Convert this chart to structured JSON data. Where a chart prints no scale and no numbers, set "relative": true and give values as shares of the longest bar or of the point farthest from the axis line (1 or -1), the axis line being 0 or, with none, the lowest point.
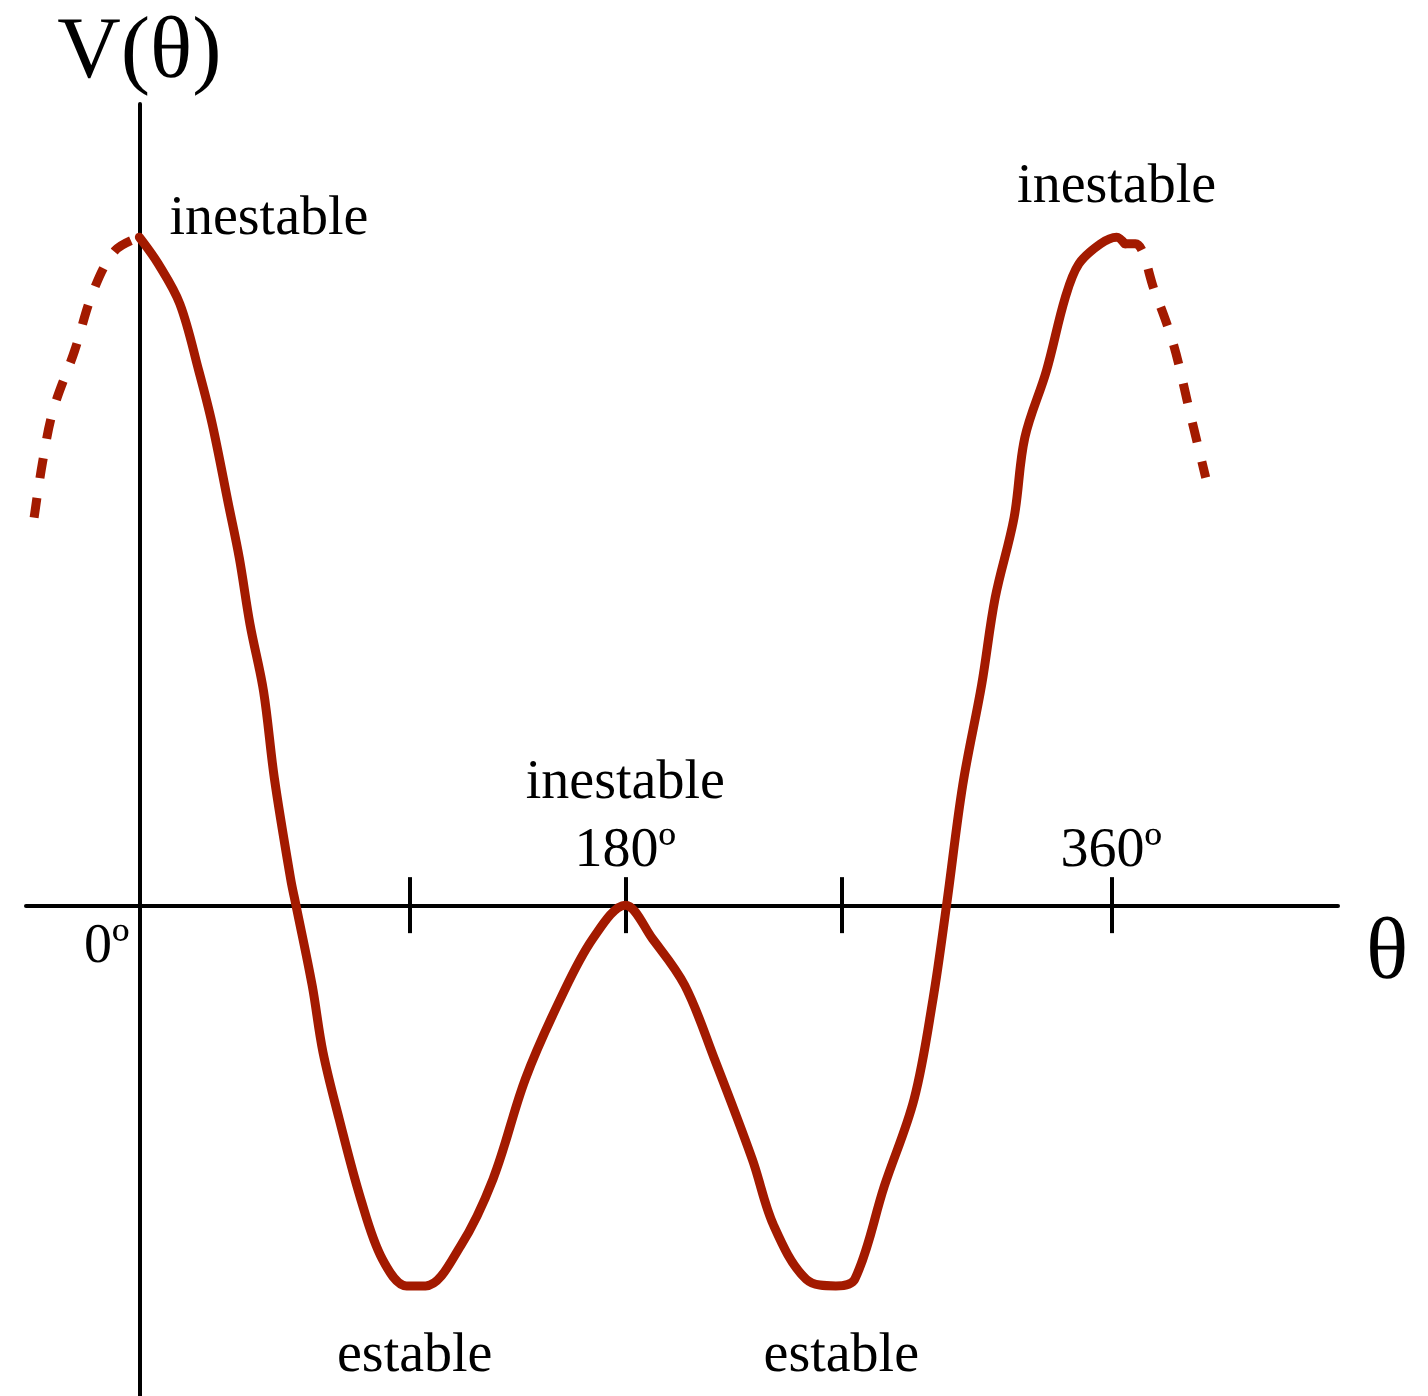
{
  "chart_data": {
    "type": "line",
    "xlabel": "θ",
    "ylabel": "V(θ)",
    "relative": true,
    "tick_labels": "x",
    "marker": "none",
    "xlim": [
      -42,
      444
    ],
    "xticks": [
      {
        "value": 100,
        "label": null
      },
      {
        "value": 180,
        "label": "180º"
      },
      {
        "value": 260,
        "label": null
      },
      {
        "value": 360,
        "label": "360º"
      }
    ],
    "series": [
      {
        "color": "#a31a00",
        "line_style": "solid",
        "x": [
          0,
          7,
          15,
          22,
          27,
          33,
          37,
          41,
          46,
          50,
          56,
          58,
          64,
          68,
          74,
          82,
          90,
          99,
          106,
          119,
          131,
          143,
          156,
          168,
          180,
          190,
          202,
          213,
          227,
          235,
          247,
          258,
          265,
          276,
          287,
          294,
          299,
          305,
          312,
          317,
          324,
          328,
          336,
          343,
          348,
          356,
          362,
          365
        ],
        "values": [
          1.0,
          0.96,
          0.9,
          0.8,
          0.72,
          0.6,
          0.52,
          0.42,
          0.32,
          0.19,
          0.04,
          0,
          -0.12,
          -0.22,
          -0.32,
          -0.44,
          -0.53,
          -0.57,
          -0.57,
          -0.51,
          -0.41,
          -0.26,
          -0.14,
          -0.05,
          0,
          -0.05,
          -0.12,
          -0.23,
          -0.38,
          -0.48,
          -0.56,
          -0.57,
          -0.56,
          -0.42,
          -0.29,
          -0.14,
          0,
          0.18,
          0.33,
          0.46,
          0.58,
          0.7,
          0.8,
          0.91,
          0.96,
          0.99,
          1.0,
          0.99
        ]
      },
      {
        "color": "#a31a00",
        "line_style": "dashed",
        "x": [
          -39,
          -36,
          -32,
          -24,
          -17,
          -9,
          0
        ],
        "values": [
          0.58,
          0.66,
          0.74,
          0.83,
          0.92,
          0.98,
          1.0
        ]
      },
      {
        "color": "#a31a00",
        "line_style": "dashed",
        "x": [
          365,
          369,
          376,
          383,
          389,
          395
        ],
        "values": [
          0.99,
          0.99,
          0.92,
          0.84,
          0.74,
          0.64
        ]
      }
    ],
    "annotations": [
      "0º",
      {
        "text": "inestable",
        "x": 0,
        "y": 1
      },
      {
        "text": "inestable",
        "x": 180,
        "y": 0
      },
      {
        "text": "inestable",
        "x": 362,
        "y": 1
      },
      {
        "text": "estable",
        "x": 102,
        "y": -0.57
      },
      {
        "text": "estable",
        "x": 260,
        "y": -0.57
      }
    ]
  }
}
